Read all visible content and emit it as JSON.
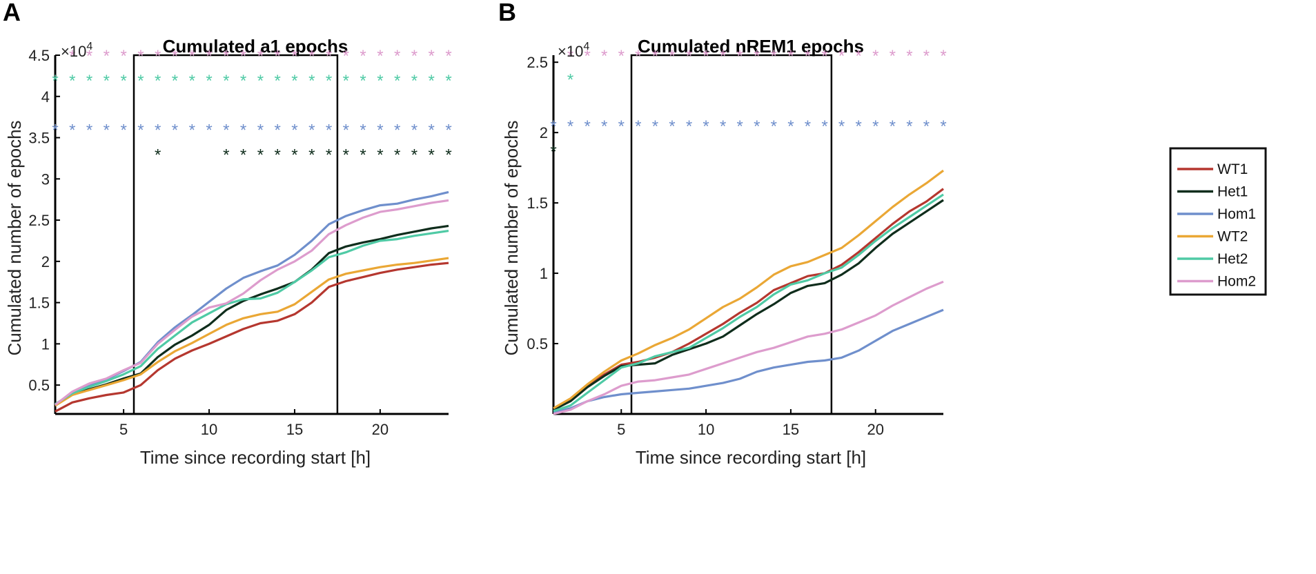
{
  "figure": {
    "legend": [
      {
        "name": "WT1",
        "color": "#b5372f"
      },
      {
        "name": "Het1",
        "color": "#0f2d1c"
      },
      {
        "name": "Hom1",
        "color": "#6f8fcc"
      },
      {
        "name": "WT2",
        "color": "#eaa735"
      },
      {
        "name": "Het2",
        "color": "#4fcaa5"
      },
      {
        "name": "Hom2",
        "color": "#dd9ccd"
      }
    ]
  },
  "chart_data": [
    {
      "panel": "A",
      "type": "line",
      "title": "Cumulated a1 epochs",
      "xlabel": "Time since recording start [h]",
      "ylabel": "Cumulated number of epochs",
      "y_exponent_label": "×10",
      "y_exponent_power": "4",
      "xlim": [
        1,
        24
      ],
      "ylim": [
        1500,
        45000
      ],
      "xticks": [
        5,
        10,
        15,
        20
      ],
      "xtick_labels": [
        "5",
        "10",
        "15",
        "20"
      ],
      "yticks": [
        5000,
        10000,
        15000,
        20000,
        25000,
        30000,
        35000,
        40000,
        45000
      ],
      "ytick_labels": [
        "0.5",
        "1",
        "1.5",
        "2",
        "2.5",
        "3",
        "3.5",
        "4",
        "4.5"
      ],
      "light_period_box": [
        5.6,
        17.5
      ],
      "x": [
        1,
        2,
        3,
        4,
        5,
        6,
        7,
        8,
        9,
        10,
        11,
        12,
        13,
        14,
        15,
        16,
        17,
        18,
        19,
        20,
        21,
        22,
        23,
        24
      ],
      "series": [
        {
          "name": "WT1",
          "color": "#b5372f",
          "values": [
            1800,
            2900,
            3400,
            3800,
            4100,
            5000,
            6800,
            8200,
            9200,
            10000,
            10900,
            11800,
            12500,
            12800,
            13600,
            15000,
            16900,
            17600,
            18100,
            18600,
            19000,
            19300,
            19600,
            19800
          ]
        },
        {
          "name": "Het1",
          "color": "#0f2d1c",
          "values": [
            2700,
            3900,
            4500,
            5100,
            5800,
            6400,
            8400,
            9900,
            11000,
            12300,
            14100,
            15200,
            16000,
            16700,
            17500,
            19000,
            21000,
            21800,
            22300,
            22700,
            23200,
            23600,
            24000,
            24300
          ]
        },
        {
          "name": "Hom1",
          "color": "#6f8fcc",
          "values": [
            2600,
            4000,
            4900,
            5700,
            6700,
            7800,
            10200,
            12000,
            13500,
            15100,
            16700,
            18000,
            18800,
            19500,
            20800,
            22500,
            24500,
            25500,
            26200,
            26800,
            27000,
            27500,
            27900,
            28400
          ]
        },
        {
          "name": "WT2",
          "color": "#eaa735",
          "values": [
            2500,
            3800,
            4400,
            5000,
            5600,
            6300,
            7800,
            9100,
            10100,
            11200,
            12300,
            13100,
            13600,
            13900,
            14800,
            16300,
            17800,
            18500,
            18900,
            19300,
            19600,
            19800,
            20100,
            20400
          ]
        },
        {
          "name": "Het2",
          "color": "#4fcaa5",
          "values": [
            2700,
            4000,
            4800,
            5500,
            6300,
            7300,
            9400,
            11000,
            12600,
            13700,
            14800,
            15400,
            15500,
            16200,
            17500,
            18900,
            20500,
            21100,
            21900,
            22500,
            22700,
            23100,
            23400,
            23700
          ]
        },
        {
          "name": "Hom2",
          "color": "#dd9ccd",
          "values": [
            2600,
            4200,
            5200,
            5800,
            6800,
            7700,
            10000,
            11700,
            13300,
            14400,
            14900,
            16100,
            17700,
            19000,
            20000,
            21300,
            23300,
            24400,
            25300,
            26000,
            26300,
            26700,
            27100,
            27400
          ]
        }
      ],
      "significance_markers": [
        {
          "color": "#dd9ccd",
          "y": 45000,
          "x": [
            2,
            3,
            4,
            5,
            6,
            7,
            8,
            9,
            10,
            11,
            12,
            13,
            14,
            15,
            16,
            17,
            18,
            19,
            20,
            21,
            22,
            23,
            24
          ]
        },
        {
          "color": "#4fcaa5",
          "y": 42000,
          "x": [
            1,
            2,
            3,
            4,
            5,
            6,
            7,
            8,
            9,
            10,
            11,
            12,
            13,
            14,
            15,
            16,
            17,
            18,
            19,
            20,
            21,
            22,
            23,
            24
          ]
        },
        {
          "color": "#6f8fcc",
          "y": 36000,
          "x": [
            1,
            2,
            3,
            4,
            5,
            6,
            7,
            8,
            9,
            10,
            11,
            12,
            13,
            14,
            15,
            16,
            17,
            18,
            19,
            20,
            21,
            22,
            23,
            24
          ]
        },
        {
          "color": "#0f2d1c",
          "y": 33000,
          "x": [
            7,
            11,
            12,
            13,
            14,
            15,
            16,
            17,
            18,
            19,
            20,
            21,
            22,
            23,
            24
          ]
        }
      ]
    },
    {
      "panel": "B",
      "type": "line",
      "title": "Cumulated nREM1 epochs",
      "xlabel": "Time since recording start [h]",
      "ylabel": "Cumulated number of epochs",
      "y_exponent_label": "×10",
      "y_exponent_power": "4",
      "xlim": [
        1,
        24
      ],
      "ylim": [
        0,
        25500
      ],
      "xticks": [
        5,
        10,
        15,
        20
      ],
      "xtick_labels": [
        "5",
        "10",
        "15",
        "20"
      ],
      "yticks": [
        5000,
        10000,
        15000,
        20000,
        25000
      ],
      "ytick_labels": [
        "0.5",
        "1",
        "1.5",
        "2",
        "2.5"
      ],
      "light_period_box": [
        5.6,
        17.4
      ],
      "x": [
        1,
        2,
        3,
        4,
        5,
        6,
        7,
        8,
        9,
        10,
        11,
        12,
        13,
        14,
        15,
        16,
        17,
        18,
        19,
        20,
        21,
        22,
        23,
        24
      ],
      "series": [
        {
          "name": "WT1",
          "color": "#b5372f",
          "values": [
            300,
            1000,
            2000,
            2800,
            3500,
            3700,
            4000,
            4400,
            5000,
            5700,
            6400,
            7200,
            7900,
            8800,
            9300,
            9800,
            10000,
            10600,
            11500,
            12500,
            13500,
            14400,
            15100,
            16000
          ]
        },
        {
          "name": "Het1",
          "color": "#0f2d1c",
          "values": [
            300,
            900,
            1900,
            2700,
            3400,
            3500,
            3600,
            4200,
            4600,
            5000,
            5500,
            6300,
            7100,
            7800,
            8600,
            9100,
            9300,
            9900,
            10700,
            11800,
            12800,
            13600,
            14400,
            15200
          ]
        },
        {
          "name": "Hom1",
          "color": "#6f8fcc",
          "values": [
            100,
            400,
            900,
            1200,
            1400,
            1500,
            1600,
            1700,
            1800,
            2000,
            2200,
            2500,
            3000,
            3300,
            3500,
            3700,
            3800,
            4000,
            4500,
            5200,
            5900,
            6400,
            6900,
            7400
          ]
        },
        {
          "name": "WT2",
          "color": "#eaa735",
          "values": [
            400,
            1100,
            2100,
            3000,
            3800,
            4300,
            4900,
            5400,
            6000,
            6800,
            7600,
            8200,
            9000,
            9900,
            10500,
            10800,
            11300,
            11800,
            12700,
            13700,
            14700,
            15600,
            16400,
            17300
          ]
        },
        {
          "name": "Het2",
          "color": "#4fcaa5",
          "values": [
            200,
            600,
            1500,
            2400,
            3300,
            3600,
            4100,
            4400,
            4700,
            5400,
            6100,
            6900,
            7600,
            8500,
            9200,
            9500,
            10000,
            10400,
            11300,
            12300,
            13200,
            14000,
            14800,
            15600
          ]
        },
        {
          "name": "Hom2",
          "color": "#dd9ccd",
          "values": [
            0,
            300,
            900,
            1400,
            2000,
            2300,
            2400,
            2600,
            2800,
            3200,
            3600,
            4000,
            4400,
            4700,
            5100,
            5500,
            5700,
            6000,
            6500,
            7000,
            7700,
            8300,
            8900,
            9400
          ]
        }
      ],
      "significance_markers": [
        {
          "color": "#dd9ccd",
          "y": 25500,
          "x": [
            2,
            3,
            4,
            5,
            6,
            7,
            8,
            9,
            10,
            11,
            12,
            13,
            14,
            15,
            16,
            17,
            18,
            19,
            20,
            21,
            22,
            23,
            24
          ]
        },
        {
          "color": "#4fcaa5",
          "y": 23800,
          "x": [
            2
          ]
        },
        {
          "color": "#6f8fcc",
          "y": 20500,
          "x": [
            1,
            2,
            3,
            4,
            5,
            6,
            7,
            8,
            9,
            10,
            11,
            12,
            13,
            14,
            15,
            16,
            17,
            18,
            19,
            20,
            21,
            22,
            23,
            24
          ]
        },
        {
          "color": "#0f2d1c",
          "y": 18700,
          "x": [
            1
          ]
        }
      ]
    }
  ]
}
